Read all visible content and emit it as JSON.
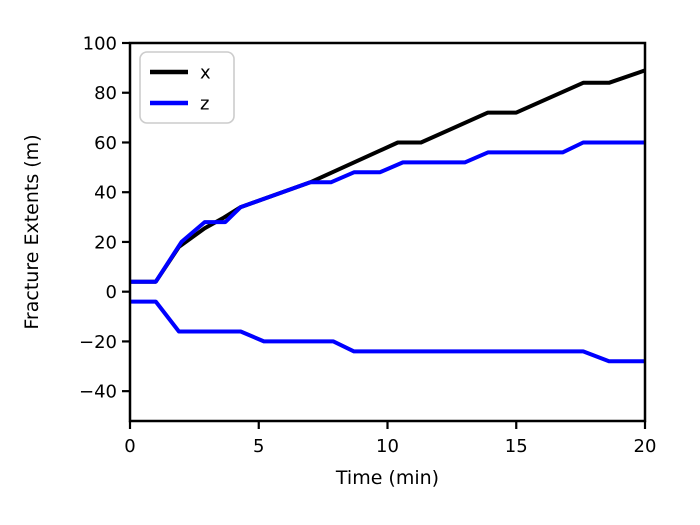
{
  "figure": {
    "background": "#ffffff",
    "text_color": "#000000"
  },
  "chart_data": {
    "type": "line",
    "title": "",
    "xlabel": "Time (min)",
    "ylabel": "Fracture Extents (m)",
    "xlim": [
      0,
      20
    ],
    "ylim": [
      -52,
      100
    ],
    "xticks": [
      0,
      5,
      10,
      15,
      20
    ],
    "yticks": [
      100,
      80,
      60,
      40,
      20,
      0,
      -20,
      -40
    ],
    "grid": false,
    "legend": {
      "position": "upper-left",
      "entries": [
        {
          "label": "x",
          "color": "#000000"
        },
        {
          "label": "z",
          "color": "#0000ff"
        }
      ]
    },
    "series": [
      {
        "name": "x",
        "legend_label": "x",
        "color": "#000000",
        "points": [
          [
            0,
            4
          ],
          [
            1,
            4
          ],
          [
            1.9,
            18
          ],
          [
            2.9,
            25.5
          ],
          [
            3.6,
            29.5
          ],
          [
            4.3,
            34
          ],
          [
            7,
            44
          ],
          [
            10.4,
            60
          ],
          [
            11.3,
            60
          ],
          [
            13.9,
            72
          ],
          [
            15,
            72
          ],
          [
            17.6,
            84
          ],
          [
            18.6,
            84
          ],
          [
            20,
            89
          ]
        ]
      },
      {
        "name": "z-upper",
        "legend_label": "z",
        "color": "#0000ff",
        "points": [
          [
            0,
            4
          ],
          [
            1,
            4
          ],
          [
            2,
            20
          ],
          [
            2.9,
            28
          ],
          [
            3.7,
            28
          ],
          [
            4.3,
            34
          ],
          [
            7,
            44
          ],
          [
            7.8,
            44
          ],
          [
            8.7,
            48
          ],
          [
            9.7,
            48
          ],
          [
            10.6,
            52
          ],
          [
            13,
            52
          ],
          [
            13.9,
            56
          ],
          [
            16.8,
            56
          ],
          [
            17.6,
            60
          ],
          [
            20,
            60
          ]
        ]
      },
      {
        "name": "z-lower",
        "legend_label": "z",
        "color": "#0000ff",
        "points": [
          [
            0,
            -4
          ],
          [
            1,
            -4
          ],
          [
            1.9,
            -16
          ],
          [
            4.3,
            -16
          ],
          [
            5.2,
            -20
          ],
          [
            7.9,
            -20
          ],
          [
            8.7,
            -24
          ],
          [
            17.6,
            -24
          ],
          [
            18.6,
            -28
          ],
          [
            20,
            -28
          ]
        ]
      }
    ]
  }
}
